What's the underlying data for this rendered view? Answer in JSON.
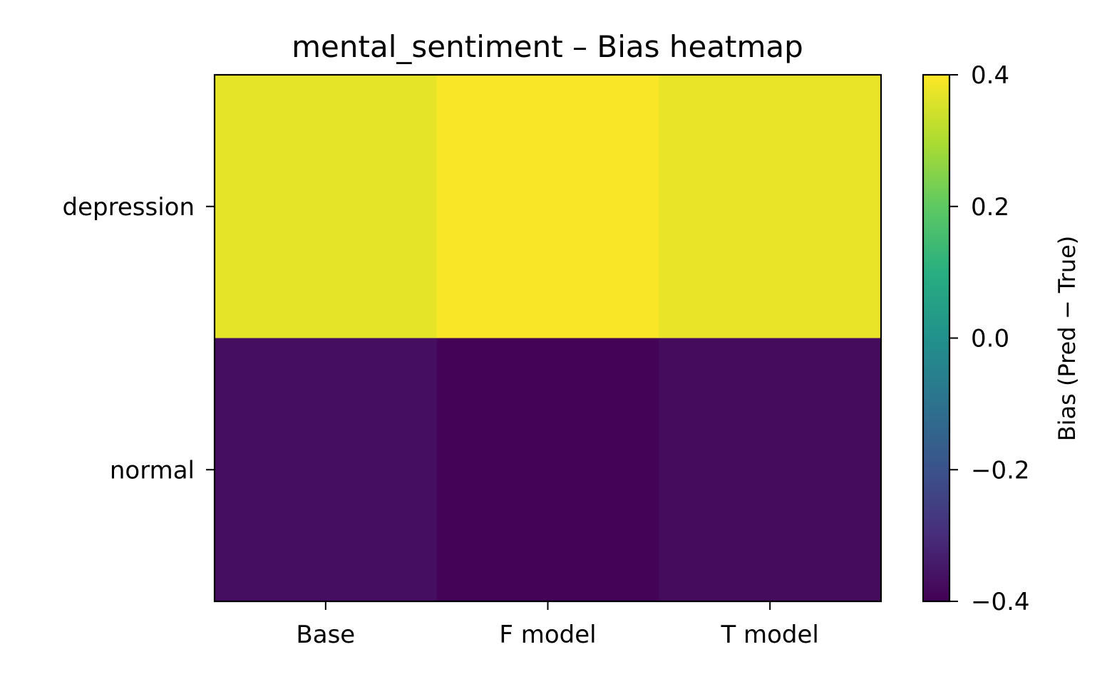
{
  "chart_data": {
    "type": "heatmap",
    "title": "mental_sentiment – Bias heatmap",
    "xlabel": "",
    "ylabel": "",
    "x_categories": [
      "Base",
      "F model",
      "T model"
    ],
    "y_categories": [
      "depression",
      "normal"
    ],
    "values": [
      [
        0.37,
        0.395,
        0.375
      ],
      [
        -0.37,
        -0.395,
        -0.375
      ]
    ],
    "colorbar": {
      "label": "Bias (Pred − True)",
      "vmin": -0.4,
      "vmax": 0.4,
      "ticks": [
        -0.4,
        -0.2,
        0.0,
        0.2,
        0.4
      ],
      "tick_labels": [
        "−0.4",
        "−0.2",
        "0.0",
        "0.2",
        "0.4"
      ],
      "colormap": "viridis"
    },
    "grid": false
  }
}
